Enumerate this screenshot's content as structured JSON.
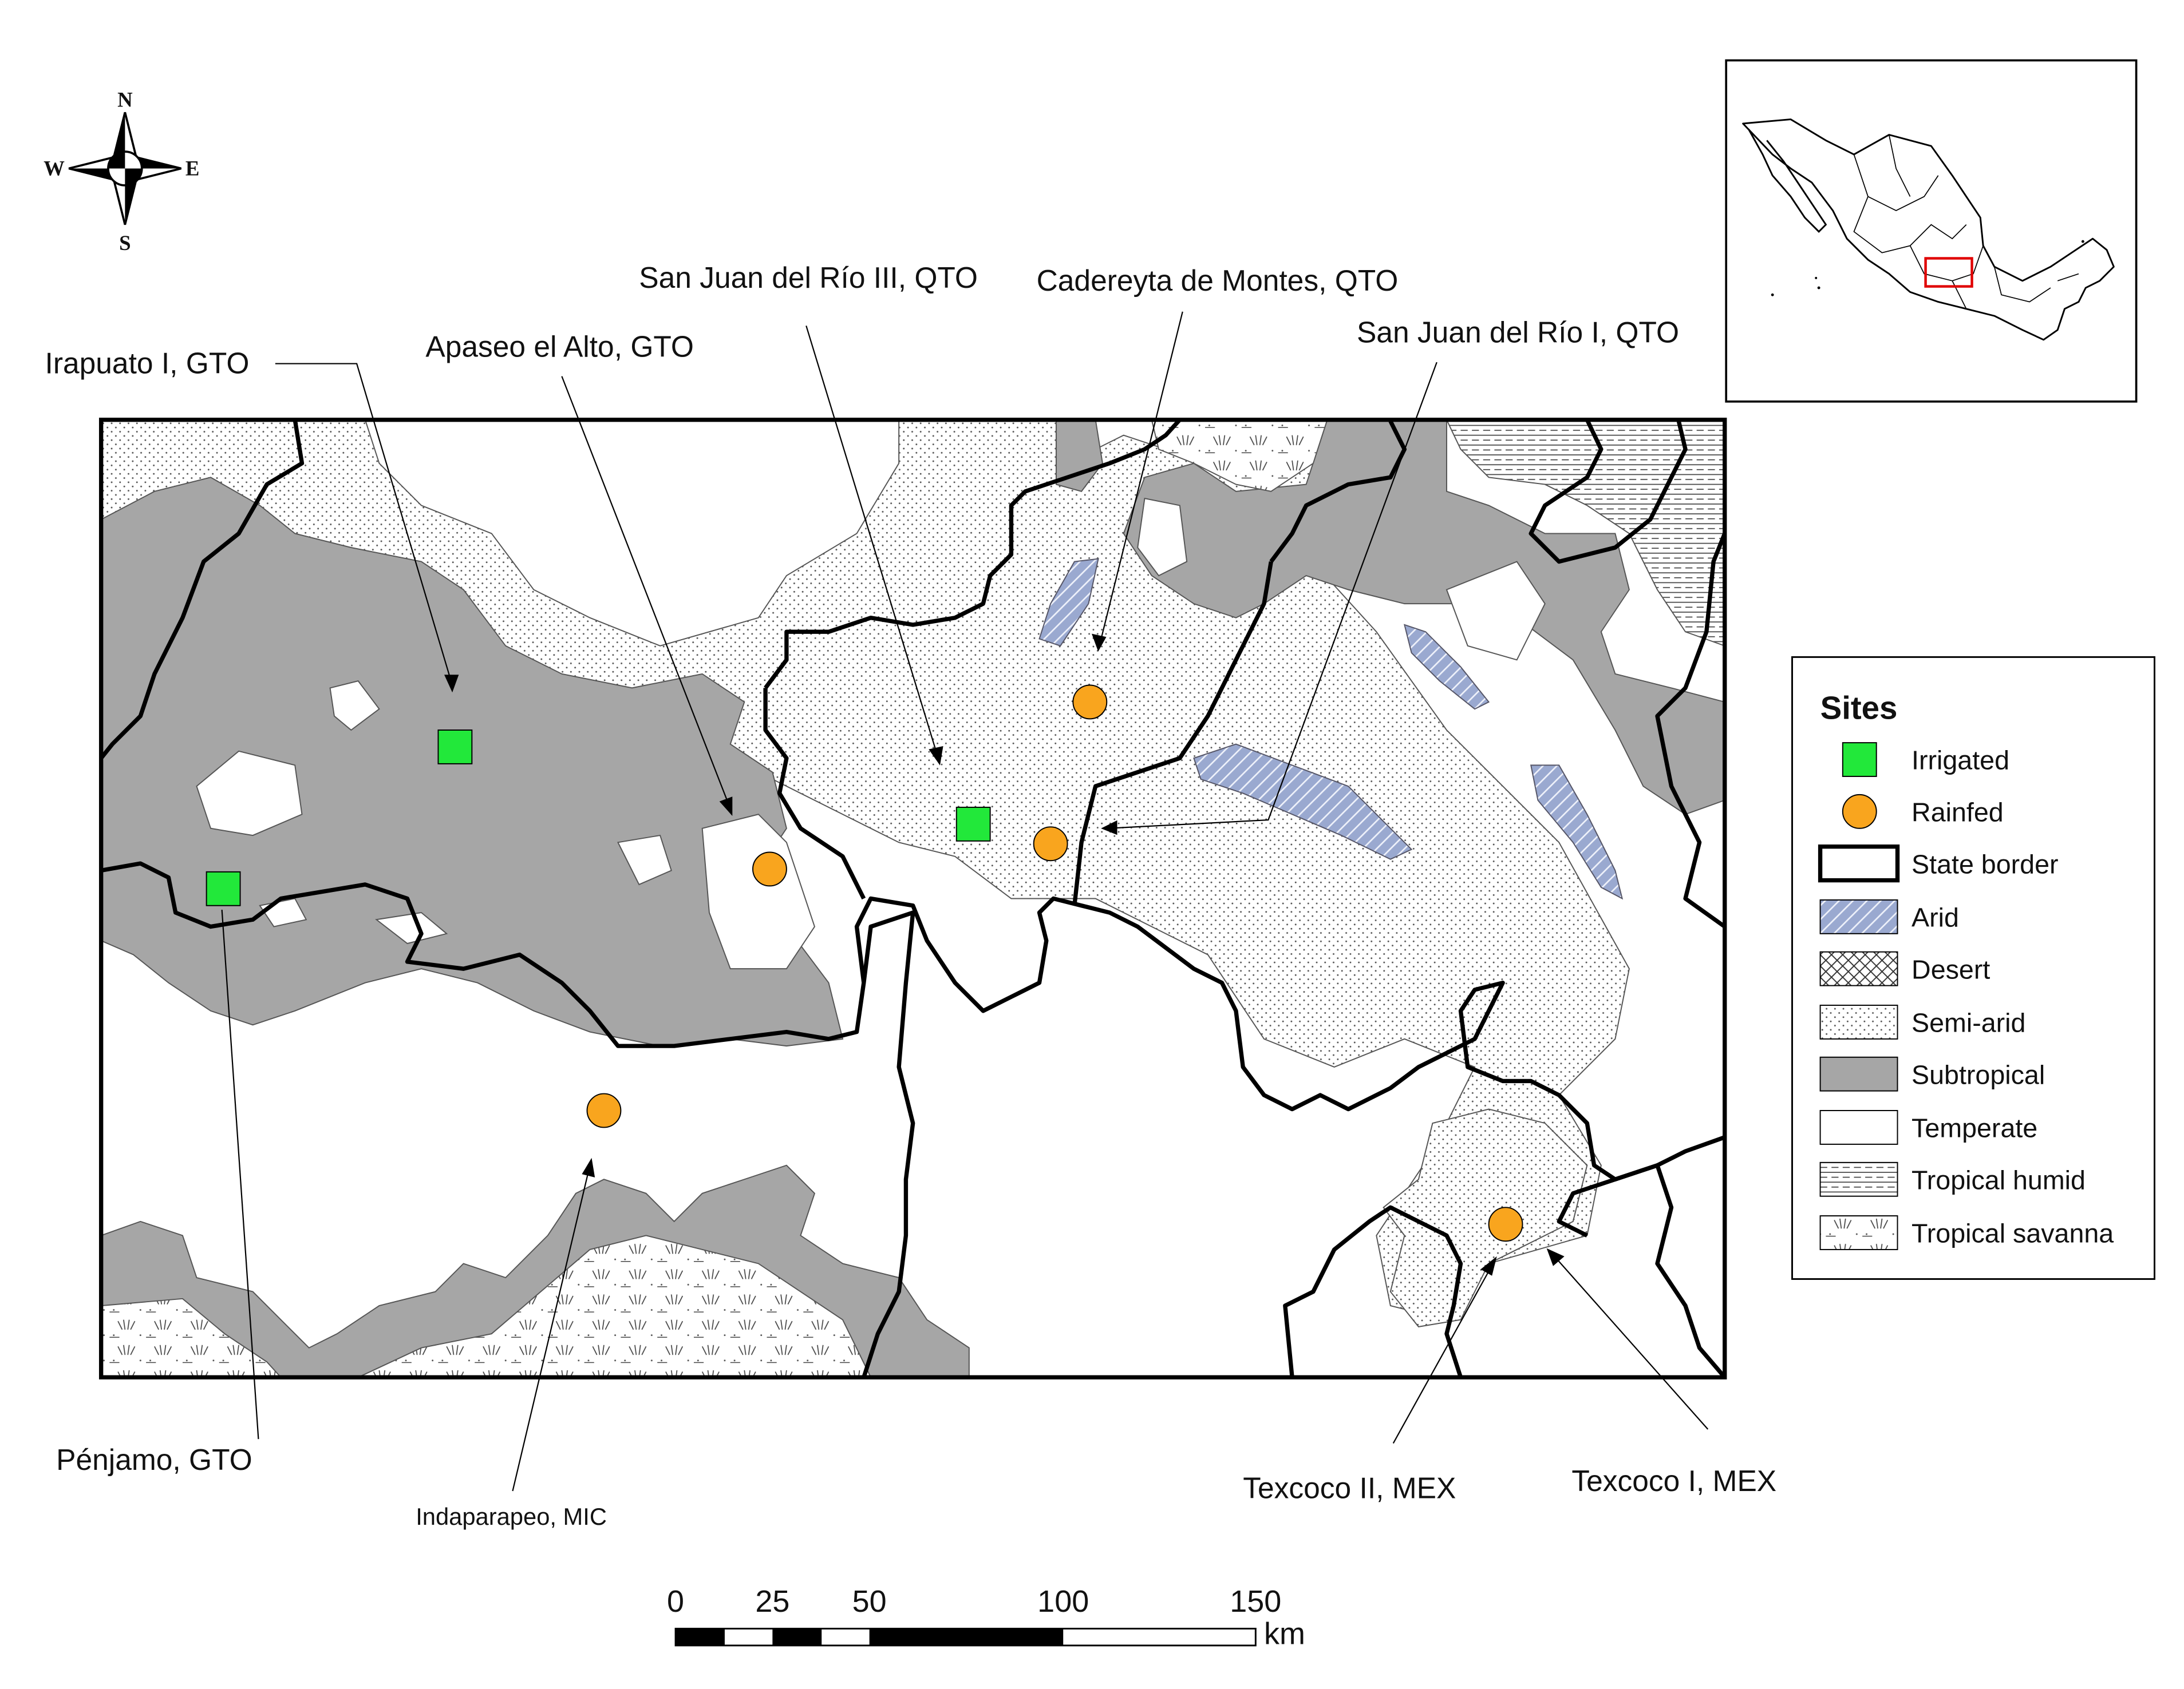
{
  "compass": {
    "n": "N",
    "s": "S",
    "e": "E",
    "w": "W"
  },
  "site_labels": {
    "irapuato_1": "Irapuato I, GTO",
    "apaseo_el_alto": "Apaseo el Alto, GTO",
    "san_juan_3": "San Juan del Río III, QTO",
    "cadereyta": "Cadereyta de Montes, QTO",
    "san_juan_1": "San Juan del Río I, QTO",
    "penjamo": "Pénjamo, GTO",
    "indaparapeo": "Indaparapeo, MIC",
    "texcoco_2": "Texcoco II, MEX",
    "texcoco_1": "Texcoco I, MEX"
  },
  "legend": {
    "title": "Sites",
    "items": [
      {
        "key": "irrigated",
        "label": "Irrigated",
        "color": "#22e83a"
      },
      {
        "key": "rainfed",
        "label": "Rainfed",
        "color": "#f9a51e"
      },
      {
        "key": "state_border",
        "label": "State border"
      },
      {
        "key": "arid",
        "label": "Arid",
        "color": "#8c9ec8"
      },
      {
        "key": "desert",
        "label": "Desert"
      },
      {
        "key": "semi_arid",
        "label": "Semi-arid"
      },
      {
        "key": "subtropical",
        "label": "Subtropical",
        "color": "#a6a6a6"
      },
      {
        "key": "temperate",
        "label": "Temperate"
      },
      {
        "key": "tropical_humid",
        "label": "Tropical humid"
      },
      {
        "key": "tropical_savanna",
        "label": "Tropical savanna"
      }
    ]
  },
  "scale_bar": {
    "ticks": [
      "0",
      "25",
      "50",
      "100",
      "150"
    ],
    "unit": "km"
  },
  "colors": {
    "irrigated": "#22e83a",
    "rainfed": "#f9a51e",
    "subtropical": "#a6a6a6",
    "arid": "#8c9ec8",
    "inset_marker": "#e00000"
  }
}
